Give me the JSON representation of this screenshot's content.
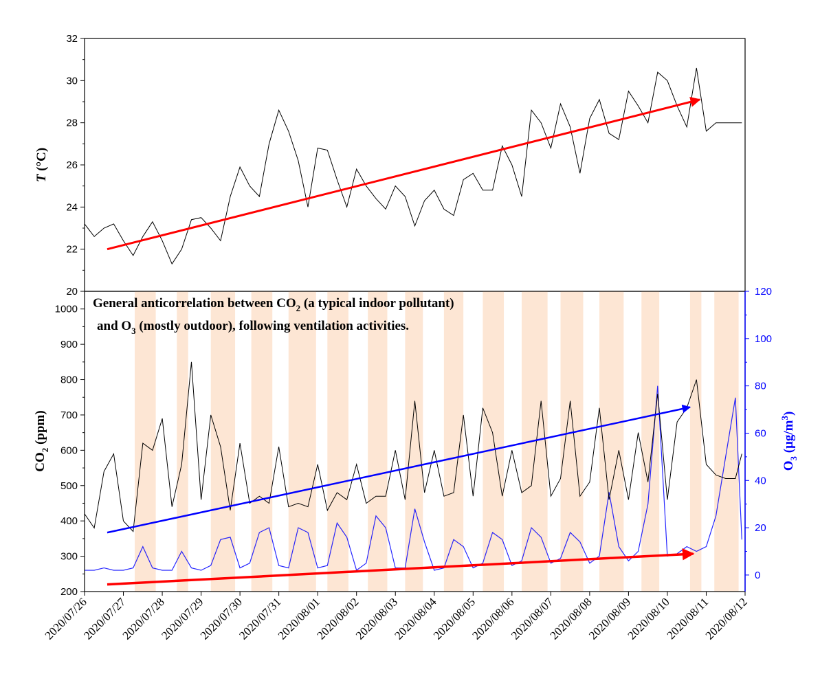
{
  "chart_data": [
    {
      "type": "line",
      "panel": "top",
      "ylabel_italic": "T",
      "ylabel_unit": " (°C)",
      "ylim": [
        20,
        32
      ],
      "yticks": [
        "20",
        "22",
        "24",
        "26",
        "28",
        "30",
        "32"
      ],
      "xlim": [
        "2020/07/26",
        "2020/08/12"
      ],
      "colors": {
        "line": "#000000",
        "trend": "#ff0000"
      },
      "series": [
        {
          "x": [
            "2020/07/26 00:00",
            "2020/07/26 06:00",
            "2020/07/26 12:00",
            "2020/07/26 18:00",
            "2020/07/27 00:00",
            "2020/07/27 06:00",
            "2020/07/27 12:00",
            "2020/07/27 18:00",
            "2020/07/28 00:00",
            "2020/07/28 06:00",
            "2020/07/28 12:00",
            "2020/07/28 18:00",
            "2020/07/29 00:00",
            "2020/07/29 06:00",
            "2020/07/29 12:00",
            "2020/07/29 18:00",
            "2020/07/30 00:00",
            "2020/07/30 06:00",
            "2020/07/30 12:00",
            "2020/07/30 18:00",
            "2020/07/31 00:00",
            "2020/07/31 06:00",
            "2020/07/31 12:00",
            "2020/07/31 18:00",
            "2020/08/01 00:00",
            "2020/08/01 06:00",
            "2020/08/01 12:00",
            "2020/08/01 18:00",
            "2020/08/02 00:00",
            "2020/08/02 06:00",
            "2020/08/02 12:00",
            "2020/08/02 18:00",
            "2020/08/03 00:00",
            "2020/08/03 06:00",
            "2020/08/03 12:00",
            "2020/08/03 18:00",
            "2020/08/04 00:00",
            "2020/08/04 06:00",
            "2020/08/04 12:00",
            "2020/08/04 18:00",
            "2020/08/05 00:00",
            "2020/08/05 06:00",
            "2020/08/05 12:00",
            "2020/08/05 18:00",
            "2020/08/06 00:00",
            "2020/08/06 06:00",
            "2020/08/06 12:00",
            "2020/08/06 18:00",
            "2020/08/07 00:00",
            "2020/08/07 06:00",
            "2020/08/07 12:00",
            "2020/08/07 18:00",
            "2020/08/08 00:00",
            "2020/08/08 06:00",
            "2020/08/08 12:00",
            "2020/08/08 18:00",
            "2020/08/09 00:00",
            "2020/08/09 06:00",
            "2020/08/09 12:00",
            "2020/08/09 18:00",
            "2020/08/10 00:00",
            "2020/08/10 06:00",
            "2020/08/10 12:00",
            "2020/08/10 18:00",
            "2020/08/11 00:00",
            "2020/08/11 06:00",
            "2020/08/11 12:00",
            "2020/08/11 18:00",
            "2020/08/11 22:00"
          ],
          "values": [
            23.2,
            22.6,
            23.0,
            23.2,
            22.4,
            21.7,
            22.6,
            23.3,
            22.4,
            21.3,
            22.0,
            23.4,
            23.5,
            23.0,
            22.4,
            24.5,
            25.9,
            25.0,
            24.5,
            27.0,
            28.6,
            27.6,
            26.2,
            24.0,
            26.8,
            26.7,
            25.3,
            24.0,
            25.8,
            25.0,
            24.4,
            23.9,
            25.0,
            24.5,
            23.1,
            24.3,
            24.8,
            23.9,
            23.6,
            25.3,
            25.6,
            24.8,
            24.8,
            26.9,
            26.0,
            24.5,
            28.6,
            28.0,
            26.8,
            28.9,
            27.8,
            25.6,
            28.2,
            29.1,
            27.5,
            27.2,
            29.5,
            28.8,
            28.0,
            30.4,
            30.0,
            28.8,
            27.8,
            30.6,
            27.6,
            28.0,
            28.0,
            28.0,
            28.0
          ]
        }
      ],
      "trend": {
        "x": [
          "2020/07/26 14:00",
          "2020/08/10 20:00"
        ],
        "y": [
          22.0,
          29.1
        ]
      }
    },
    {
      "type": "line",
      "panel": "bottom",
      "annotation_line1": [
        "General anticorrelation between CO",
        "2",
        " (a typical indoor pollutant)"
      ],
      "annotation_line2": [
        "and O",
        "3",
        " (mostly outdoor), following ventilation activities."
      ],
      "ylabel_left": [
        "CO",
        "2",
        " (ppm)"
      ],
      "ylabel_right": [
        "O",
        "3",
        " (μg/m",
        "3",
        ")"
      ],
      "ylim_left": [
        200,
        1050
      ],
      "yticks_left": [
        "200",
        "300",
        "400",
        "500",
        "600",
        "700",
        "800",
        "900",
        "1000"
      ],
      "ylim_right": [
        -7,
        120
      ],
      "yticks_right": [
        "0",
        "20",
        "40",
        "60",
        "80",
        "100",
        "120"
      ],
      "xlim": [
        "2020/07/26",
        "2020/08/12"
      ],
      "xticks": [
        "2020/07/26",
        "2020/07/27",
        "2020/07/28",
        "2020/07/29",
        "2020/07/30",
        "2020/07/31",
        "2020/08/01",
        "2020/08/02",
        "2020/08/03",
        "2020/08/04",
        "2020/08/05",
        "2020/08/06",
        "2020/08/07",
        "2020/08/08",
        "2020/08/09",
        "2020/08/10",
        "2020/08/11",
        "2020/08/12"
      ],
      "colors": {
        "co2": "#000000",
        "o3": "#0000ff",
        "band": "#fde6d4",
        "co2_trend": "#0000ff",
        "o3_trend": "#ff0000"
      },
      "ventilation_bands": [
        [
          "2020/07/27 07:00",
          "2020/07/27 20:00"
        ],
        [
          "2020/07/28 09:00",
          "2020/07/28 16:00"
        ],
        [
          "2020/07/29 06:00",
          "2020/07/29 21:00"
        ],
        [
          "2020/07/30 07:00",
          "2020/07/30 20:00"
        ],
        [
          "2020/07/31 06:00",
          "2020/07/31 23:00"
        ],
        [
          "2020/08/01 06:00",
          "2020/08/01 19:00"
        ],
        [
          "2020/08/02 07:00",
          "2020/08/02 19:00"
        ],
        [
          "2020/08/03 06:00",
          "2020/08/03 17:00"
        ],
        [
          "2020/08/04 06:00",
          "2020/08/04 18:00"
        ],
        [
          "2020/08/05 06:00",
          "2020/08/05 19:00"
        ],
        [
          "2020/08/06 06:00",
          "2020/08/06 22:00"
        ],
        [
          "2020/08/07 06:00",
          "2020/08/07 20:00"
        ],
        [
          "2020/08/08 06:00",
          "2020/08/08 21:00"
        ],
        [
          "2020/08/09 08:00",
          "2020/08/09 19:00"
        ],
        [
          "2020/08/10 14:00",
          "2020/08/10 21:00"
        ],
        [
          "2020/08/11 05:00",
          "2020/08/11 20:00"
        ]
      ],
      "series": [
        {
          "axis": "left",
          "x": [
            "2020/07/26 00:00",
            "2020/07/26 06:00",
            "2020/07/26 12:00",
            "2020/07/26 18:00",
            "2020/07/27 00:00",
            "2020/07/27 06:00",
            "2020/07/27 12:00",
            "2020/07/27 18:00",
            "2020/07/28 00:00",
            "2020/07/28 06:00",
            "2020/07/28 12:00",
            "2020/07/28 18:00",
            "2020/07/29 00:00",
            "2020/07/29 06:00",
            "2020/07/29 12:00",
            "2020/07/29 18:00",
            "2020/07/30 00:00",
            "2020/07/30 06:00",
            "2020/07/30 12:00",
            "2020/07/30 18:00",
            "2020/07/31 00:00",
            "2020/07/31 06:00",
            "2020/07/31 12:00",
            "2020/07/31 18:00",
            "2020/08/01 00:00",
            "2020/08/01 06:00",
            "2020/08/01 12:00",
            "2020/08/01 18:00",
            "2020/08/02 00:00",
            "2020/08/02 06:00",
            "2020/08/02 12:00",
            "2020/08/02 18:00",
            "2020/08/03 00:00",
            "2020/08/03 06:00",
            "2020/08/03 12:00",
            "2020/08/03 18:00",
            "2020/08/04 00:00",
            "2020/08/04 06:00",
            "2020/08/04 12:00",
            "2020/08/04 18:00",
            "2020/08/05 00:00",
            "2020/08/05 06:00",
            "2020/08/05 12:00",
            "2020/08/05 18:00",
            "2020/08/06 00:00",
            "2020/08/06 06:00",
            "2020/08/06 12:00",
            "2020/08/06 18:00",
            "2020/08/07 00:00",
            "2020/08/07 06:00",
            "2020/08/07 12:00",
            "2020/08/07 18:00",
            "2020/08/08 00:00",
            "2020/08/08 06:00",
            "2020/08/08 12:00",
            "2020/08/08 18:00",
            "2020/08/09 00:00",
            "2020/08/09 06:00",
            "2020/08/09 12:00",
            "2020/08/09 18:00",
            "2020/08/10 00:00",
            "2020/08/10 06:00",
            "2020/08/10 12:00",
            "2020/08/10 18:00",
            "2020/08/11 00:00",
            "2020/08/11 06:00",
            "2020/08/11 12:00",
            "2020/08/11 18:00",
            "2020/08/11 22:00"
          ],
          "values": [
            420,
            380,
            540,
            590,
            400,
            370,
            620,
            600,
            690,
            440,
            560,
            850,
            460,
            700,
            610,
            430,
            620,
            450,
            470,
            450,
            610,
            440,
            450,
            440,
            560,
            430,
            480,
            460,
            560,
            450,
            470,
            470,
            600,
            460,
            740,
            480,
            600,
            470,
            480,
            700,
            470,
            720,
            650,
            470,
            600,
            480,
            500,
            740,
            470,
            520,
            740,
            470,
            510,
            720,
            460,
            600,
            460,
            650,
            510,
            760,
            460,
            680,
            720,
            800,
            560,
            530,
            520,
            520,
            590
          ]
        },
        {
          "axis": "right",
          "x": [
            "2020/07/26 00:00",
            "2020/07/26 06:00",
            "2020/07/26 12:00",
            "2020/07/26 18:00",
            "2020/07/27 00:00",
            "2020/07/27 06:00",
            "2020/07/27 12:00",
            "2020/07/27 18:00",
            "2020/07/28 00:00",
            "2020/07/28 06:00",
            "2020/07/28 12:00",
            "2020/07/28 18:00",
            "2020/07/29 00:00",
            "2020/07/29 06:00",
            "2020/07/29 12:00",
            "2020/07/29 18:00",
            "2020/07/30 00:00",
            "2020/07/30 06:00",
            "2020/07/30 12:00",
            "2020/07/30 18:00",
            "2020/07/31 00:00",
            "2020/07/31 06:00",
            "2020/07/31 12:00",
            "2020/07/31 18:00",
            "2020/08/01 00:00",
            "2020/08/01 06:00",
            "2020/08/01 12:00",
            "2020/08/01 18:00",
            "2020/08/02 00:00",
            "2020/08/02 06:00",
            "2020/08/02 12:00",
            "2020/08/02 18:00",
            "2020/08/03 00:00",
            "2020/08/03 06:00",
            "2020/08/03 12:00",
            "2020/08/03 18:00",
            "2020/08/04 00:00",
            "2020/08/04 06:00",
            "2020/08/04 12:00",
            "2020/08/04 18:00",
            "2020/08/05 00:00",
            "2020/08/05 06:00",
            "2020/08/05 12:00",
            "2020/08/05 18:00",
            "2020/08/06 00:00",
            "2020/08/06 06:00",
            "2020/08/06 12:00",
            "2020/08/06 18:00",
            "2020/08/07 00:00",
            "2020/08/07 06:00",
            "2020/08/07 12:00",
            "2020/08/07 18:00",
            "2020/08/08 00:00",
            "2020/08/08 06:00",
            "2020/08/08 12:00",
            "2020/08/08 18:00",
            "2020/08/09 00:00",
            "2020/08/09 06:00",
            "2020/08/09 12:00",
            "2020/08/09 18:00",
            "2020/08/10 00:00",
            "2020/08/10 06:00",
            "2020/08/10 12:00",
            "2020/08/10 18:00",
            "2020/08/11 00:00",
            "2020/08/11 06:00",
            "2020/08/11 12:00",
            "2020/08/11 18:00",
            "2020/08/11 22:00"
          ],
          "values": [
            2,
            2,
            3,
            2,
            2,
            3,
            12,
            3,
            2,
            2,
            10,
            3,
            2,
            4,
            15,
            16,
            3,
            5,
            18,
            20,
            4,
            3,
            20,
            18,
            3,
            4,
            22,
            16,
            2,
            5,
            25,
            20,
            3,
            3,
            28,
            14,
            2,
            3,
            15,
            12,
            3,
            5,
            18,
            15,
            4,
            6,
            20,
            16,
            5,
            7,
            18,
            14,
            5,
            8,
            35,
            12,
            6,
            10,
            30,
            80,
            8,
            9,
            12,
            10,
            12,
            25,
            50,
            75,
            15
          ]
        }
      ],
      "co2_trend": {
        "x": [
          "2020/07/26 14:00",
          "2020/08/10 14:00"
        ],
        "y": [
          367,
          722
        ]
      },
      "o3_trend": {
        "x": [
          "2020/07/26 14:00",
          "2020/08/10 16:00"
        ],
        "y": [
          -4,
          9
        ]
      }
    }
  ]
}
